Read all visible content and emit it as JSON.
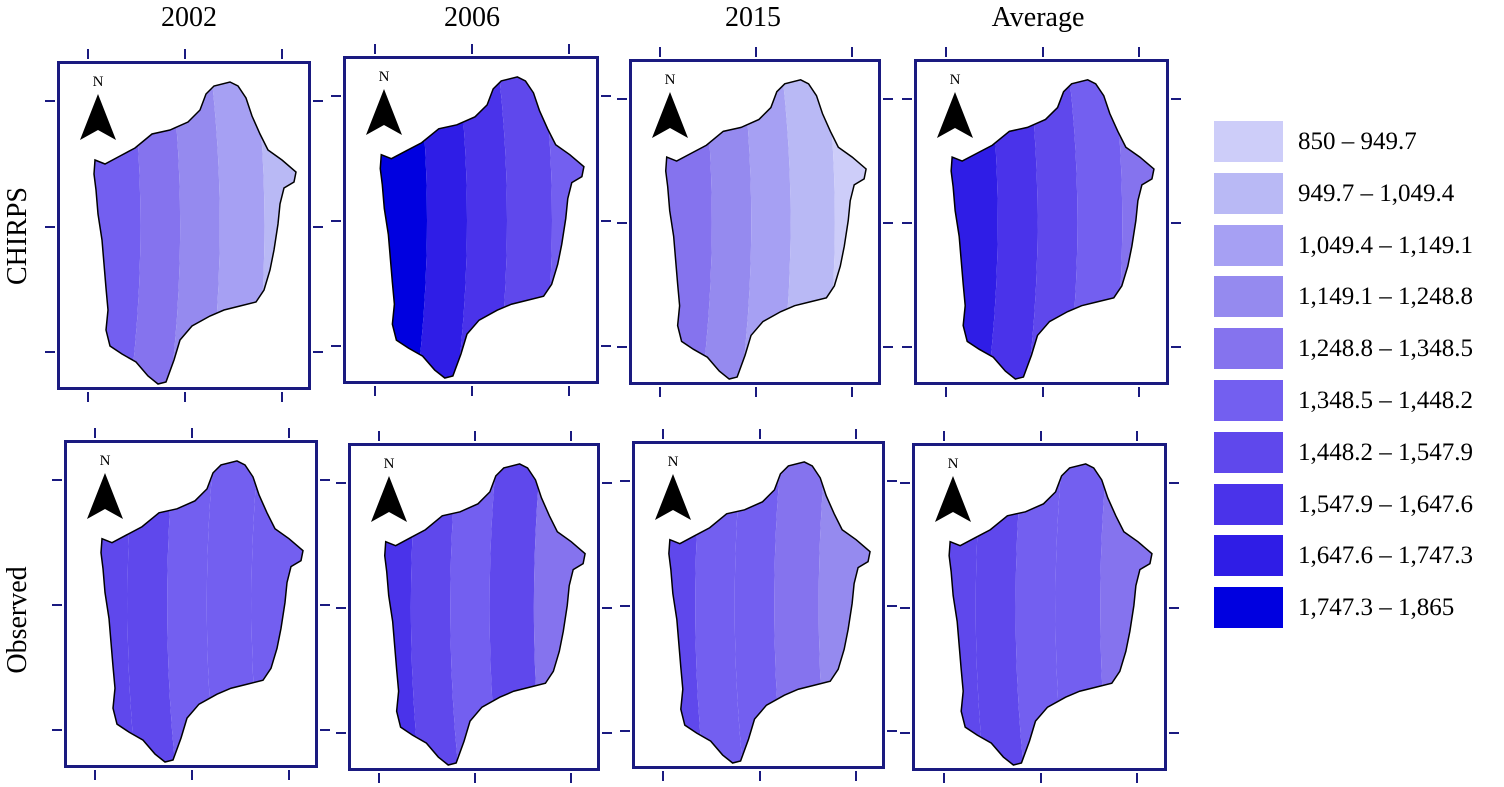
{
  "columns": [
    "2002",
    "2006",
    "2015",
    "Average"
  ],
  "rows": [
    "CHIRPS",
    "Observed"
  ],
  "north_label": "N",
  "legend": [
    {
      "label": "850 – 949.7",
      "color": "#cdcdf9"
    },
    {
      "label": "949.7 – 1,049.4",
      "color": "#b9b9f5"
    },
    {
      "label": "1,049.4 – 1,149.1",
      "color": "#a6a0f3"
    },
    {
      "label": "1,149.1 – 1,248.8",
      "color": "#958aef"
    },
    {
      "label": "1,248.8 – 1,348.5",
      "color": "#8573ee"
    },
    {
      "label": "1,348.5 – 1,448.2",
      "color": "#735ff0"
    },
    {
      "label": "1,448.2 – 1,547.9",
      "color": "#5f48ec"
    },
    {
      "label": "1,547.9 – 1,647.6",
      "color": "#4a33ea"
    },
    {
      "label": "1,647.6 – 1,747.3",
      "color": "#2f1de6"
    },
    {
      "label": "1,747.3 – 1,865",
      "color": "#0000e0"
    }
  ],
  "maps": [
    {
      "row": "CHIRPS",
      "col": "2002",
      "bands": [
        "#735ff0",
        "#8573ee",
        "#958aef",
        "#a6a0f3",
        "#b9b9f5"
      ]
    },
    {
      "row": "CHIRPS",
      "col": "2006",
      "bands": [
        "#0000e0",
        "#2f1de6",
        "#4a33ea",
        "#5f48ec",
        "#735ff0"
      ]
    },
    {
      "row": "CHIRPS",
      "col": "2015",
      "bands": [
        "#8573ee",
        "#958aef",
        "#a6a0f3",
        "#b9b9f5",
        "#cdcdf9"
      ]
    },
    {
      "row": "CHIRPS",
      "col": "Average",
      "bands": [
        "#2f1de6",
        "#4a33ea",
        "#5f48ec",
        "#735ff0",
        "#8573ee"
      ]
    },
    {
      "row": "Observed",
      "col": "2002",
      "bands": [
        "#5f48ec",
        "#5f48ec",
        "#735ff0",
        "#735ff0",
        "#735ff0"
      ]
    },
    {
      "row": "Observed",
      "col": "2006",
      "bands": [
        "#4a33ea",
        "#5f48ec",
        "#735ff0",
        "#5f48ec",
        "#8573ee"
      ]
    },
    {
      "row": "Observed",
      "col": "2015",
      "bands": [
        "#5f48ec",
        "#735ff0",
        "#735ff0",
        "#8573ee",
        "#958aef"
      ]
    },
    {
      "row": "Observed",
      "col": "Average",
      "bands": [
        "#5f48ec",
        "#5f48ec",
        "#735ff0",
        "#735ff0",
        "#8573ee"
      ]
    }
  ]
}
